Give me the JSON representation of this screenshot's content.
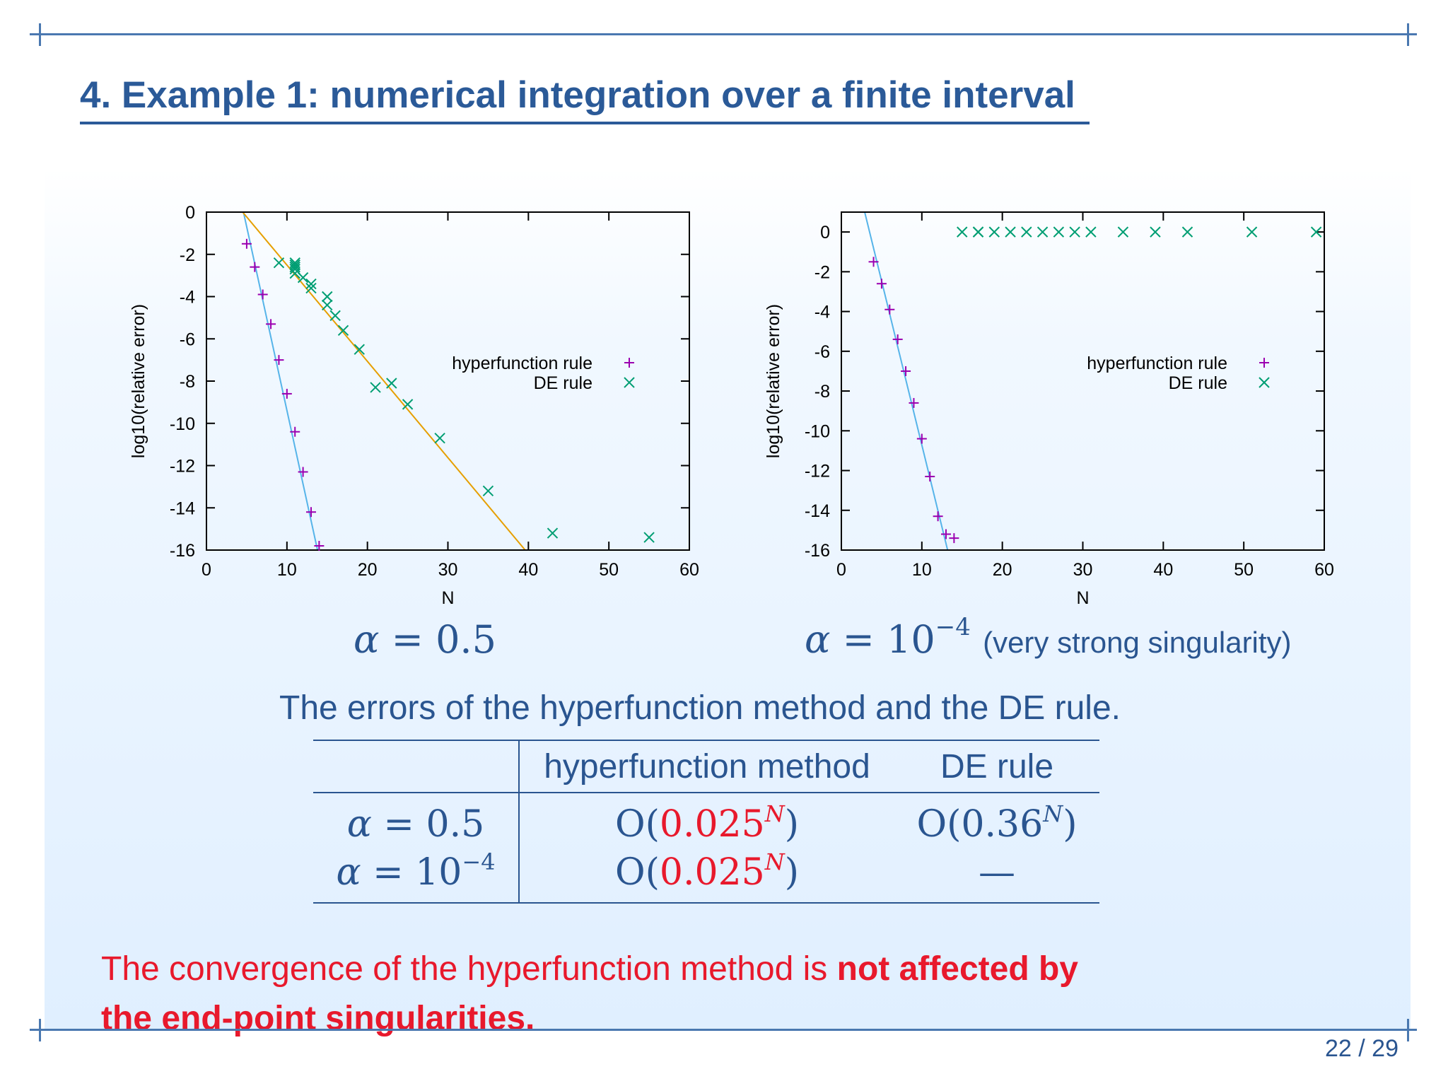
{
  "slide": {
    "title": "4. Example 1: numerical integration over a finite interval",
    "page": "22 / 29"
  },
  "chart_data": [
    {
      "type": "scatter",
      "title": "",
      "xlabel": "N",
      "ylabel": "log10(relative error)",
      "xlim": [
        0,
        60
      ],
      "ylim": [
        -16,
        0
      ],
      "xticks": [
        0,
        10,
        20,
        30,
        40,
        50,
        60
      ],
      "yticks": [
        0,
        -2,
        -4,
        -6,
        -8,
        -10,
        -12,
        -14,
        -16
      ],
      "legend_placement": "right",
      "grid": false,
      "series": [
        {
          "name": "hyperfunction rule",
          "marker": "plus",
          "color": "#9b00b0",
          "x": [
            5,
            6,
            7,
            8,
            9,
            10,
            11,
            12,
            13,
            14
          ],
          "y": [
            -1.5,
            -2.6,
            -3.9,
            -5.3,
            -7.0,
            -8.6,
            -10.4,
            -12.3,
            -14.2,
            -15.8
          ]
        },
        {
          "name": "DE rule",
          "marker": "cross",
          "color": "#009e73",
          "x": [
            9,
            11,
            11,
            11,
            11,
            11,
            12,
            13,
            13,
            15,
            15,
            16,
            17,
            19,
            21,
            23,
            25,
            29,
            35,
            43,
            55
          ],
          "y": [
            -2.4,
            -2.4,
            -2.5,
            -2.7,
            -2.9,
            -2.6,
            -3.1,
            -3.4,
            -3.6,
            -4.0,
            -4.4,
            -4.9,
            -5.6,
            -6.5,
            -8.3,
            -8.1,
            -9.1,
            -10.7,
            -13.2,
            -15.2,
            -15.4
          ]
        }
      ],
      "fit_lines": [
        {
          "series": "hyperfunction rule",
          "color": "#56b4e9",
          "from": [
            4.6,
            0
          ],
          "to": [
            13.8,
            -16
          ]
        },
        {
          "series": "DE rule",
          "color": "#e69f00",
          "from": [
            4.5,
            0
          ],
          "to": [
            39.6,
            -16
          ]
        }
      ]
    },
    {
      "type": "scatter",
      "title": "",
      "xlabel": "N",
      "ylabel": "log10(relative error)",
      "xlim": [
        0,
        60
      ],
      "ylim": [
        -16,
        1
      ],
      "xticks": [
        0,
        10,
        20,
        30,
        40,
        50,
        60
      ],
      "yticks": [
        0,
        -2,
        -4,
        -6,
        -8,
        -10,
        -12,
        -14,
        -16
      ],
      "legend_placement": "right",
      "grid": false,
      "series": [
        {
          "name": "hyperfunction rule",
          "marker": "plus",
          "color": "#9b00b0",
          "x": [
            4,
            5,
            6,
            7,
            8,
            9,
            10,
            11,
            12,
            13,
            14
          ],
          "y": [
            -1.5,
            -2.6,
            -3.9,
            -5.4,
            -7.0,
            -8.6,
            -10.4,
            -12.3,
            -14.3,
            -15.2,
            -15.4
          ]
        },
        {
          "name": "DE rule",
          "marker": "cross",
          "color": "#009e73",
          "x": [
            15,
            17,
            17,
            19,
            21,
            23,
            25,
            27,
            29,
            31,
            35,
            39,
            43,
            51,
            59
          ],
          "y": [
            0,
            0,
            0,
            0,
            0,
            0,
            0,
            0,
            0,
            0,
            0,
            0,
            0,
            0,
            0
          ]
        }
      ],
      "fit_lines": [
        {
          "series": "hyperfunction rule",
          "color": "#56b4e9",
          "from": [
            2.9,
            1
          ],
          "to": [
            13.2,
            -16
          ]
        }
      ]
    }
  ],
  "captions": {
    "left_alpha": "0.5",
    "right_alpha_base": "10",
    "right_alpha_exp": "−4",
    "right_note": "(very strong singularity)",
    "table_title": "The errors of the hyperfunction method and the DE rule."
  },
  "table": {
    "header": [
      "",
      "hyperfunction method",
      "DE rule"
    ],
    "rows": [
      {
        "alpha": "0.5",
        "alpha_exp": "",
        "hyper_base": "0.025",
        "de_base": "0.36",
        "de_dash": ""
      },
      {
        "alpha": "10",
        "alpha_exp": "−4",
        "hyper_base": "0.025",
        "de_base": "",
        "de_dash": "—"
      }
    ]
  },
  "conclusion": {
    "normal": "The convergence of the hyperfunction method is ",
    "bold": "not affected by the end-point singularities."
  },
  "colors": {
    "accent_blue": "#2a5590",
    "highlight_red": "#e8192c"
  }
}
